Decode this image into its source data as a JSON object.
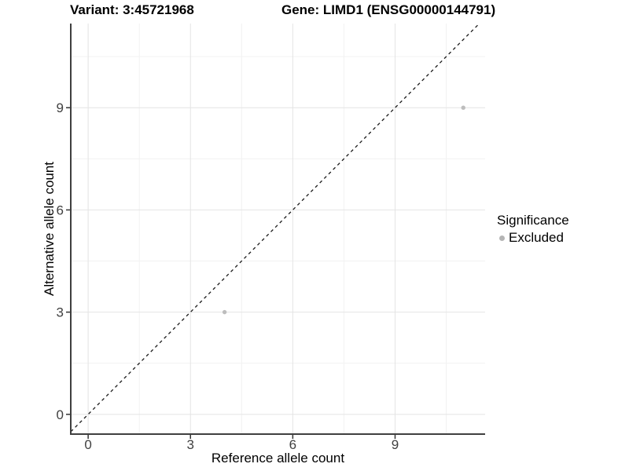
{
  "header": {
    "variant_title": "Variant: 3:45721968",
    "gene_title": "Gene: LIMD1 (ENSG00000144791)"
  },
  "chart_data": {
    "type": "scatter",
    "xlabel": "Reference allele count",
    "ylabel": "Alternative allele count",
    "xticks": [
      0,
      3,
      6,
      9
    ],
    "yticks": [
      0,
      3,
      6,
      9
    ],
    "minor_ticks_x": [
      1.5,
      4.5,
      7.5,
      10.5
    ],
    "minor_ticks_y": [
      1.5,
      4.5,
      7.5,
      10.5
    ],
    "xlim": [
      -0.51,
      11.64
    ],
    "ylim": [
      -0.58,
      11.47
    ],
    "grid": {
      "major": true,
      "minor": true
    },
    "identity_line": {
      "equation": "y = x",
      "style": "dashed",
      "color": "#1a1a1a"
    },
    "series": [
      {
        "name": "Excluded",
        "color": "#bdbdbd",
        "points": [
          {
            "x": 4,
            "y": 3
          },
          {
            "x": 11,
            "y": 9
          }
        ]
      }
    ],
    "legend": {
      "title": "Significance",
      "position": "right",
      "items": [
        {
          "label": "Excluded",
          "color": "#b5b5b5"
        }
      ]
    }
  },
  "colors": {
    "background": "#ffffff",
    "grid_major": "#e4e4e4",
    "grid_minor": "#f2f2f2",
    "axis_line": "#3f3f3f",
    "tick_color": "#333333",
    "tick_label": "#404040",
    "axis_title": "#000000"
  }
}
